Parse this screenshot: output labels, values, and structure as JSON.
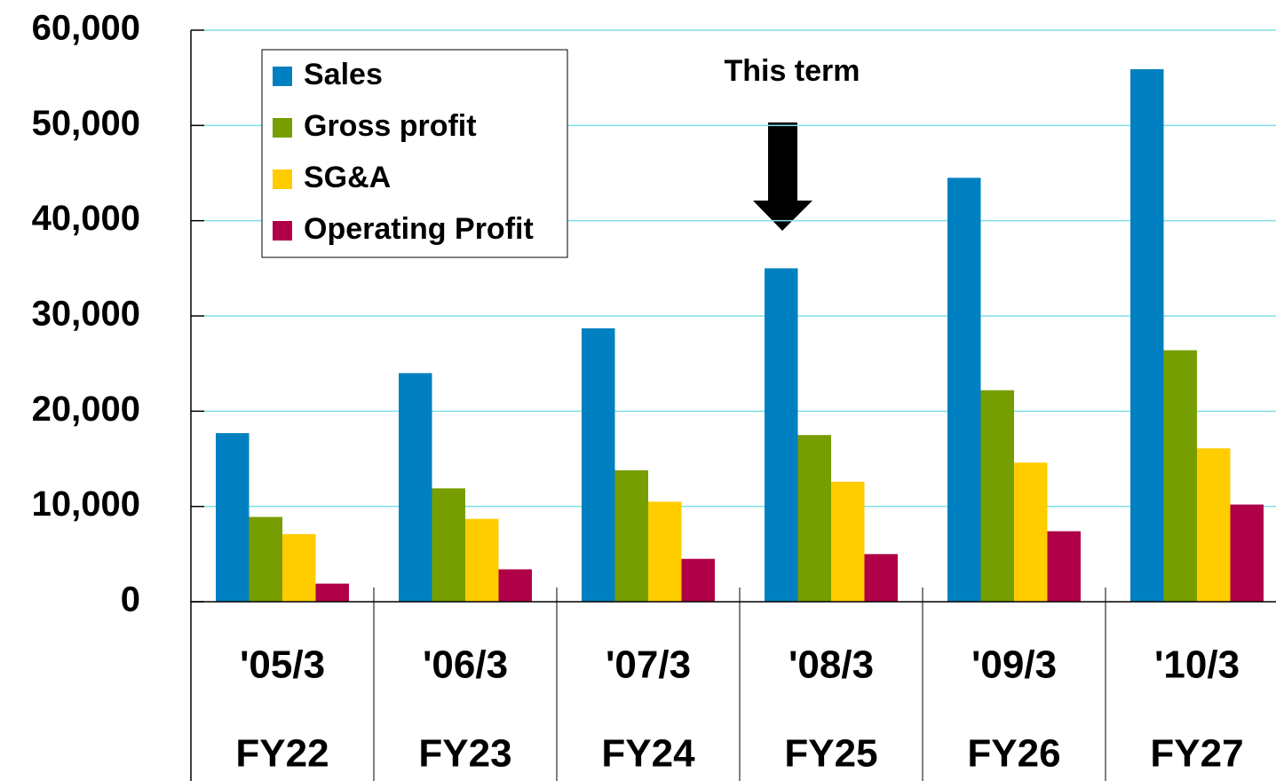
{
  "chart_data": {
    "type": "bar",
    "categories": [
      [
        "'05/3",
        "FY22"
      ],
      [
        "'06/3",
        "FY23"
      ],
      [
        "'07/3",
        "FY24"
      ],
      [
        "'08/3",
        "FY25"
      ],
      [
        "'09/3",
        "FY26"
      ],
      [
        "'10/3",
        "FY27"
      ]
    ],
    "series": [
      {
        "name": "Sales",
        "color": "#0080c0",
        "values": [
          17700,
          24000,
          28700,
          35000,
          44500,
          55900
        ]
      },
      {
        "name": "Gross profit",
        "color": "#779e00",
        "values": [
          8900,
          11900,
          13800,
          17500,
          22200,
          26400
        ]
      },
      {
        "name": "SG&A",
        "color": "#ffcc00",
        "values": [
          7100,
          8700,
          10500,
          12600,
          14600,
          16100
        ]
      },
      {
        "name": "Operating Profit",
        "color": "#b00048",
        "values": [
          1900,
          3400,
          4500,
          5000,
          7400,
          10200
        ]
      }
    ],
    "ylim": [
      0,
      60000
    ],
    "yticks": [
      {
        "value": 0,
        "label": "0"
      },
      {
        "value": 10000,
        "label": "10,000"
      },
      {
        "value": 20000,
        "label": "20,000"
      },
      {
        "value": 30000,
        "label": "30,000"
      },
      {
        "value": 40000,
        "label": "40,000"
      },
      {
        "value": 50000,
        "label": "50,000"
      },
      {
        "value": 60000,
        "label": "60,000"
      }
    ],
    "grid": true,
    "legend": "upper-left",
    "annotation": "This term"
  }
}
